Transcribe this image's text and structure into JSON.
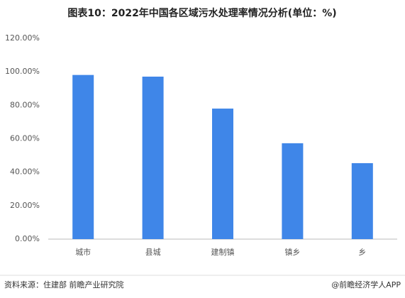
{
  "chart_data": {
    "type": "bar",
    "title": "图表10：2022年中国各区域污水处理率情况分析(单位：%)",
    "categories": [
      "城市",
      "县城",
      "建制镇",
      "镇乡",
      "乡"
    ],
    "values": [
      98.1,
      97.1,
      78,
      57.3,
      45.4
    ],
    "color": "#3f86e8",
    "ylim": [
      0,
      120
    ],
    "yticks": [
      {
        "value": 0,
        "label": "0.00%"
      },
      {
        "value": 20,
        "label": "20.00%"
      },
      {
        "value": 40,
        "label": "40.00%"
      },
      {
        "value": 60,
        "label": "60.00%"
      },
      {
        "value": 80,
        "label": "80.00%"
      },
      {
        "value": 100,
        "label": "100.00%"
      },
      {
        "value": 120,
        "label": "120.00%"
      }
    ],
    "grid": false,
    "source": "资料来源：住建部 前瞻产业研究院",
    "credit": "@前瞻经济学人APP"
  }
}
